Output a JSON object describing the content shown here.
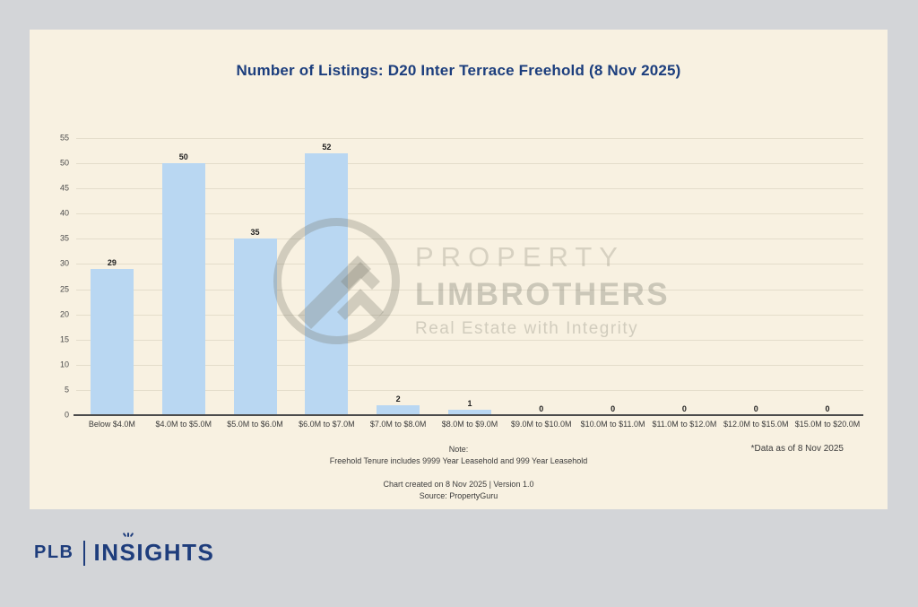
{
  "header": {
    "title": "Number of Listings: D20 Inter Terrace Freehold (8 Nov 2025)",
    "title_color": "#1c3e7d"
  },
  "chart_data": {
    "type": "bar",
    "title": "Number of Listings: D20 Inter Terrace Freehold (8 Nov 2025)",
    "categories": [
      "Below $4.0M",
      "$4.0M to $5.0M",
      "$5.0M to $6.0M",
      "$6.0M to $7.0M",
      "$7.0M to $8.0M",
      "$8.0M to $9.0M",
      "$9.0M to $10.0M",
      "$10.0M to $11.0M",
      "$11.0M to $12.0M",
      "$12.0M to $15.0M",
      "$15.0M to $20.0M"
    ],
    "values": [
      29,
      50,
      35,
      52,
      2,
      1,
      0,
      0,
      0,
      0,
      0
    ],
    "xlabel": "",
    "ylabel": "",
    "ylim": [
      0,
      55
    ],
    "ytick_step": 5,
    "grid": true,
    "legend": false,
    "bar_color": "#b9d7f2",
    "data_labels": true
  },
  "watermark": {
    "line1": "PROPERTY",
    "line2": "LIMBROTHERS",
    "tagline": "Real Estate with Integrity"
  },
  "notes": {
    "note_label": "Note:",
    "note_text": "Freehold Tenure includes 9999 Year Leasehold and 999 Year Leasehold",
    "created": "Chart created on 8 Nov 2025 | Version 1.0",
    "source": "Source: PropertyGuru",
    "data_asof": "*Data as of 8 Nov 2025"
  },
  "footer_logo": {
    "plb": "PLB",
    "insights_pre": "IN",
    "insights_s": "S",
    "insights_post": "IGHTS"
  }
}
